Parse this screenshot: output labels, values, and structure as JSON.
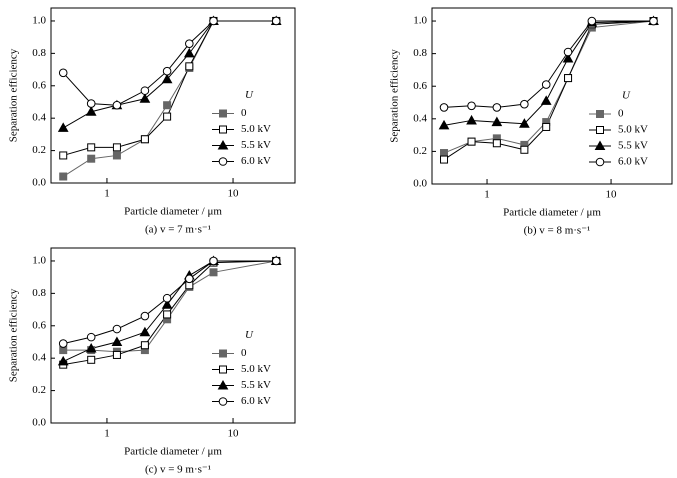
{
  "chart_data": [
    {
      "type": "line",
      "caption": "(a) v = 7 m·s⁻¹",
      "x_label": "Particle diameter / μm",
      "y_label": "Separation efficiency",
      "legend_title": "U",
      "legend": "right",
      "log_x": true,
      "x": [
        0.45,
        0.75,
        1.2,
        2,
        3,
        4.5,
        7,
        22
      ],
      "xlim": [
        0.36,
        31
      ],
      "xticks": [
        1,
        10
      ],
      "ylim": [
        0,
        1.08
      ],
      "yticks": [
        {
          "value": 0,
          "label": "0.0"
        },
        {
          "value": 0.2,
          "label": "0.2"
        },
        {
          "value": 0.4,
          "label": "0.4"
        },
        {
          "value": 0.6,
          "label": "0.6"
        },
        {
          "value": 0.8,
          "label": "0.8"
        },
        {
          "value": 1,
          "label": "1.0"
        }
      ],
      "series": [
        {
          "name": "0",
          "color": "#666666",
          "marker": "square-filled",
          "values": [
            0.04,
            0.15,
            0.17,
            0.27,
            0.48,
            0.71,
            1.0,
            1.0
          ]
        },
        {
          "name": "5.0 kV",
          "color": "#000000",
          "marker": "square-open",
          "values": [
            0.17,
            0.22,
            0.22,
            0.27,
            0.41,
            0.72,
            1.0,
            1.0
          ]
        },
        {
          "name": "5.5 kV",
          "color": "#000000",
          "marker": "triangle-filled",
          "values": [
            0.34,
            0.44,
            0.48,
            0.52,
            0.64,
            0.8,
            1.0,
            1.0
          ]
        },
        {
          "name": "6.0 kV",
          "color": "#000000",
          "marker": "circle-open",
          "values": [
            0.68,
            0.49,
            0.48,
            0.57,
            0.69,
            0.86,
            1.0,
            1.0
          ]
        }
      ]
    },
    {
      "type": "line",
      "caption": "(b) v = 8 m·s⁻¹",
      "x_label": "Particle diameter / μm",
      "y_label": "Separation efficiency",
      "legend_title": "U",
      "legend": "right",
      "log_x": true,
      "x": [
        0.45,
        0.75,
        1.2,
        2,
        3,
        4.5,
        7,
        22
      ],
      "xlim": [
        0.36,
        31
      ],
      "xticks": [
        1,
        10
      ],
      "ylim": [
        0,
        1.08
      ],
      "yticks": [
        {
          "value": 0,
          "label": "0.0"
        },
        {
          "value": 0.2,
          "label": "0.2"
        },
        {
          "value": 0.4,
          "label": "0.4"
        },
        {
          "value": 0.6,
          "label": "0.6"
        },
        {
          "value": 0.8,
          "label": "0.8"
        },
        {
          "value": 1,
          "label": "1.0"
        }
      ],
      "series": [
        {
          "name": "0",
          "color": "#666666",
          "marker": "square-filled",
          "values": [
            0.19,
            0.26,
            0.28,
            0.24,
            0.38,
            0.65,
            0.96,
            1.0
          ]
        },
        {
          "name": "5.0 kV",
          "color": "#000000",
          "marker": "square-open",
          "values": [
            0.15,
            0.26,
            0.25,
            0.21,
            0.35,
            0.65,
            0.98,
            1.0
          ]
        },
        {
          "name": "5.5 kV",
          "color": "#000000",
          "marker": "triangle-filled",
          "values": [
            0.36,
            0.39,
            0.38,
            0.37,
            0.51,
            0.77,
            0.99,
            1.0
          ]
        },
        {
          "name": "6.0 kV",
          "color": "#000000",
          "marker": "circle-open",
          "values": [
            0.47,
            0.48,
            0.47,
            0.49,
            0.61,
            0.81,
            1.0,
            1.0
          ]
        }
      ]
    },
    {
      "type": "line",
      "caption": "(c) v = 9 m·s⁻¹",
      "x_label": "Particle diameter / μm",
      "y_label": "Separation efficiency",
      "legend_title": "U",
      "legend": "right",
      "log_x": true,
      "x": [
        0.45,
        0.75,
        1.2,
        2,
        3,
        4.5,
        7,
        22
      ],
      "xlim": [
        0.36,
        31
      ],
      "xticks": [
        1,
        10
      ],
      "ylim": [
        0,
        1.08
      ],
      "yticks": [
        {
          "value": 0,
          "label": "0.0"
        },
        {
          "value": 0.2,
          "label": "0.2"
        },
        {
          "value": 0.4,
          "label": "0.4"
        },
        {
          "value": 0.6,
          "label": "0.6"
        },
        {
          "value": 0.8,
          "label": "0.8"
        },
        {
          "value": 1,
          "label": "1.0"
        }
      ],
      "series": [
        {
          "name": "0",
          "color": "#666666",
          "marker": "square-filled",
          "values": [
            0.45,
            0.45,
            0.44,
            0.45,
            0.64,
            0.84,
            0.93,
            1.0
          ]
        },
        {
          "name": "5.0 kV",
          "color": "#000000",
          "marker": "square-open",
          "values": [
            0.36,
            0.39,
            0.42,
            0.48,
            0.67,
            0.85,
            0.99,
            1.0
          ]
        },
        {
          "name": "5.5 kV",
          "color": "#000000",
          "marker": "triangle-filled",
          "values": [
            0.38,
            0.46,
            0.5,
            0.56,
            0.73,
            0.91,
            1.0,
            1.0
          ]
        },
        {
          "name": "6.0 kV",
          "color": "#000000",
          "marker": "circle-open",
          "values": [
            0.49,
            0.53,
            0.58,
            0.66,
            0.77,
            0.89,
            1.0,
            1.0
          ]
        }
      ]
    }
  ]
}
